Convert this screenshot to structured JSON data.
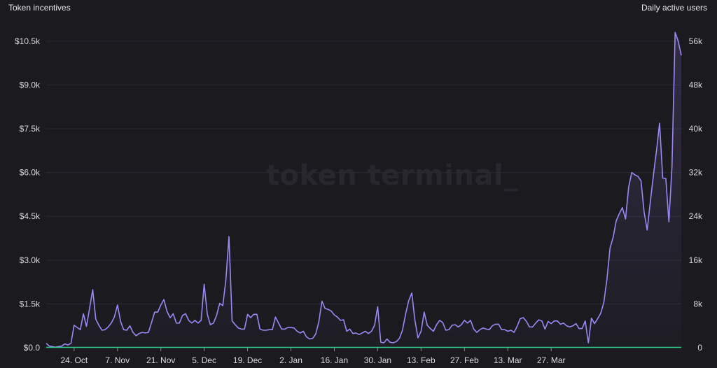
{
  "watermark": "token terminal_",
  "chart_data": {
    "type": "line",
    "left_axis_title": "Token incentives",
    "right_axis_title": "Daily active users",
    "left_ticks": [
      "$0.0",
      "$1.5k",
      "$3.0k",
      "$4.5k",
      "$6.0k",
      "$7.5k",
      "$9.0k",
      "$10.5k"
    ],
    "left_tick_values": [
      0,
      1500,
      3000,
      4500,
      6000,
      7500,
      9000,
      10500
    ],
    "right_ticks": [
      "0",
      "8k",
      "16k",
      "24k",
      "32k",
      "40k",
      "48k",
      "56k"
    ],
    "right_tick_values": [
      0,
      8000,
      16000,
      24000,
      32000,
      40000,
      48000,
      56000
    ],
    "ylim_left": [
      0,
      11000
    ],
    "ylim_right": [
      0,
      58667
    ],
    "x_ticks": [
      "24. Oct",
      "7. Nov",
      "21. Nov",
      "5. Dec",
      "19. Dec",
      "2. Jan",
      "16. Jan",
      "30. Jan",
      "13. Feb",
      "27. Feb",
      "13. Mar",
      "27. Mar"
    ],
    "x_tick_index": [
      9,
      23,
      37,
      51,
      65,
      79,
      93,
      107,
      121,
      135,
      149,
      163
    ],
    "grid": true,
    "series": [
      {
        "axis": "right",
        "color": "#9d87f5",
        "values": [
          800,
          300,
          200,
          100,
          200,
          300,
          700,
          500,
          800,
          4100,
          3700,
          3300,
          6200,
          3900,
          7200,
          10600,
          5200,
          4100,
          3200,
          3300,
          3800,
          4500,
          5600,
          7800,
          4800,
          3300,
          3200,
          4000,
          2800,
          2200,
          2600,
          2800,
          2700,
          2800,
          4600,
          6500,
          6500,
          7800,
          8800,
          6600,
          5500,
          6200,
          4500,
          4500,
          5900,
          6200,
          5000,
          4500,
          5000,
          4500,
          5000,
          11600,
          6100,
          4200,
          4500,
          5900,
          8100,
          7700,
          12400,
          20300,
          4900,
          4200,
          3600,
          3400,
          3400,
          6100,
          5500,
          6100,
          6100,
          3400,
          3200,
          3200,
          3300,
          3300,
          5600,
          4500,
          3400,
          3400,
          3700,
          3700,
          3600,
          3000,
          2700,
          3000,
          2000,
          1600,
          1700,
          2500,
          4700,
          8500,
          7200,
          7000,
          6700,
          6000,
          5600,
          5000,
          5100,
          3000,
          3400,
          2600,
          2700,
          2400,
          2700,
          3000,
          2600,
          3000,
          4100,
          7500,
          1000,
          900,
          1600,
          1000,
          900,
          1100,
          1700,
          3200,
          6100,
          8600,
          10000,
          5100,
          1800,
          3000,
          6500,
          4100,
          3500,
          3000,
          4200,
          5000,
          4600,
          3200,
          3300,
          4100,
          4200,
          3800,
          4200,
          5000,
          4500,
          5000,
          3400,
          2800,
          3300,
          3600,
          3400,
          3300,
          4000,
          4300,
          4300,
          3300,
          3300,
          3000,
          3200,
          2800,
          3900,
          5300,
          5500,
          4800,
          3800,
          3800,
          4500,
          5100,
          4900,
          3400,
          4800,
          4400,
          4900,
          4900,
          4300,
          4500,
          4000,
          3800,
          4000,
          4400,
          3500,
          3500,
          4900,
          900,
          5400,
          4400,
          5300,
          6300,
          8300,
          12500,
          18200,
          20200,
          23200,
          24500,
          25600,
          23500,
          29300,
          32000,
          31600,
          31300,
          30500,
          24800,
          21500,
          26700,
          31500,
          36000,
          41000,
          31000,
          30900,
          23000,
          33000,
          57600,
          56000,
          53400
        ]
      }
    ]
  }
}
